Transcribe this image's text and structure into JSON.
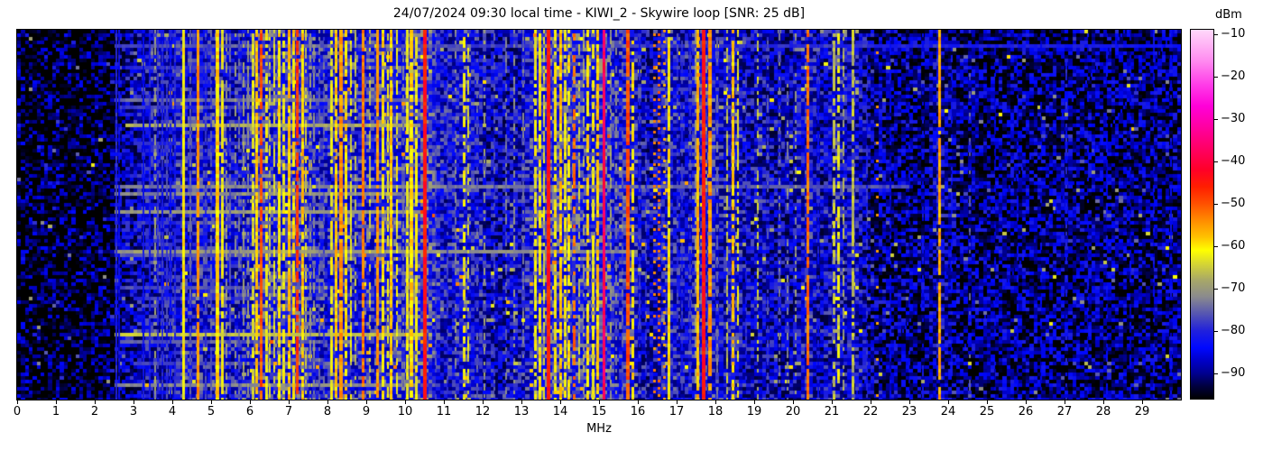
{
  "title": "24/07/2024 09:30 local time - KIWI_2 - Skywire loop [SNR: 25 dB]",
  "x_axis": {
    "label": "MHz",
    "ticks": [
      {
        "label": "0",
        "value": 0
      },
      {
        "label": "1",
        "value": 1
      },
      {
        "label": "2",
        "value": 2
      },
      {
        "label": "3",
        "value": 3
      },
      {
        "label": "4",
        "value": 4
      },
      {
        "label": "5",
        "value": 5
      },
      {
        "label": "6",
        "value": 6
      },
      {
        "label": "7",
        "value": 7
      },
      {
        "label": "8",
        "value": 8
      },
      {
        "label": "9",
        "value": 9
      },
      {
        "label": "10",
        "value": 10
      },
      {
        "label": "11",
        "value": 11
      },
      {
        "label": "12",
        "value": 12
      },
      {
        "label": "13",
        "value": 13
      },
      {
        "label": "14",
        "value": 14
      },
      {
        "label": "15",
        "value": 15
      },
      {
        "label": "16",
        "value": 16
      },
      {
        "label": "17",
        "value": 17
      },
      {
        "label": "18",
        "value": 18
      },
      {
        "label": "19",
        "value": 19
      },
      {
        "label": "20",
        "value": 20
      },
      {
        "label": "21",
        "value": 21
      },
      {
        "label": "22",
        "value": 22
      },
      {
        "label": "23",
        "value": 23
      },
      {
        "label": "24",
        "value": 24
      },
      {
        "label": "25",
        "value": 25
      },
      {
        "label": "26",
        "value": 26
      },
      {
        "label": "27",
        "value": 27
      },
      {
        "label": "28",
        "value": 28
      },
      {
        "label": "29",
        "value": 29
      }
    ]
  },
  "colorbar": {
    "label": "dBm",
    "ticks": [
      {
        "label": "−10",
        "value": -10
      },
      {
        "label": "−20",
        "value": -20
      },
      {
        "label": "−30",
        "value": -30
      },
      {
        "label": "−40",
        "value": -40
      },
      {
        "label": "−50",
        "value": -50
      },
      {
        "label": "−60",
        "value": -60
      },
      {
        "label": "−70",
        "value": -70
      },
      {
        "label": "−80",
        "value": -80
      },
      {
        "label": "−90",
        "value": -90
      }
    ]
  },
  "chart_data": {
    "type": "heatmap",
    "subtype": "radio-spectrogram-waterfall",
    "title": "24/07/2024 09:30 local time - KIWI_2 - Skywire loop [SNR: 25 dB]",
    "xlabel": "MHz",
    "x_range": [
      0,
      30
    ],
    "value_label": "dBm",
    "value_range": [
      -96,
      -9
    ],
    "legend_position": "right-colorbar",
    "grid": false,
    "colormap": [
      [
        -96,
        "#000000"
      ],
      [
        -93,
        "#000040"
      ],
      [
        -90,
        "#000090"
      ],
      [
        -87,
        "#0000c8"
      ],
      [
        -84,
        "#0008ff"
      ],
      [
        -80,
        "#2020dc"
      ],
      [
        -76,
        "#5555b2"
      ],
      [
        -72,
        "#8a8a8e"
      ],
      [
        -68,
        "#a8a868"
      ],
      [
        -64,
        "#d8d830"
      ],
      [
        -61,
        "#ffff00"
      ],
      [
        -58,
        "#ffc400"
      ],
      [
        -54,
        "#ff8c00"
      ],
      [
        -50,
        "#ff5000"
      ],
      [
        -46,
        "#ff1e00"
      ],
      [
        -42,
        "#ff0028"
      ],
      [
        -37,
        "#ff0064"
      ],
      [
        -32,
        "#ff00a0"
      ],
      [
        -27,
        "#ff00d8"
      ],
      [
        -22,
        "#ff3ce8"
      ],
      [
        -16,
        "#ff8ff0"
      ],
      [
        -9,
        "#ffd8fa"
      ]
    ],
    "noise_floor_fields": [
      "mhz",
      "dbm"
    ],
    "noise_floor": [
      [
        0,
        -96
      ],
      [
        2.4,
        -96
      ],
      [
        2.7,
        -90
      ],
      [
        3.1,
        -88
      ],
      [
        3.6,
        -86
      ],
      [
        4.3,
        -87
      ],
      [
        5.0,
        -87
      ],
      [
        6.0,
        -86
      ],
      [
        6.5,
        -85
      ],
      [
        7.3,
        -84
      ],
      [
        8.0,
        -86
      ],
      [
        8.8,
        -86
      ],
      [
        9.5,
        -85
      ],
      [
        10.2,
        -84
      ],
      [
        10.6,
        -84
      ],
      [
        11.0,
        -86
      ],
      [
        11.6,
        -86
      ],
      [
        12.5,
        -88
      ],
      [
        13.3,
        -86
      ],
      [
        13.8,
        -84
      ],
      [
        14.5,
        -85
      ],
      [
        15.5,
        -86
      ],
      [
        16.1,
        -88
      ],
      [
        16.9,
        -87
      ],
      [
        17.8,
        -87
      ],
      [
        18.4,
        -88
      ],
      [
        19.0,
        -89
      ],
      [
        19.6,
        -88
      ],
      [
        20.5,
        -89
      ],
      [
        21.5,
        -88
      ],
      [
        22.2,
        -91
      ],
      [
        23.0,
        -92
      ],
      [
        24.0,
        -92
      ],
      [
        26.0,
        -92
      ],
      [
        28.0,
        -92
      ],
      [
        30.0,
        -92
      ]
    ],
    "signals_fields": [
      "mhz",
      "dbm",
      "width_px",
      "duty"
    ],
    "signals": [
      [
        2.55,
        -80,
        2,
        1
      ],
      [
        2.63,
        -84,
        2,
        0.8
      ],
      [
        3.25,
        -83,
        2,
        0.85
      ],
      [
        3.42,
        -81,
        2,
        0.85
      ],
      [
        3.55,
        -70,
        2,
        0.55
      ],
      [
        3.63,
        -79,
        2,
        0.8
      ],
      [
        3.74,
        -80,
        2,
        0.8
      ],
      [
        3.85,
        -78,
        2,
        0.85
      ],
      [
        3.95,
        -82,
        2,
        0.8
      ],
      [
        4.07,
        -80,
        2,
        0.8
      ],
      [
        4.28,
        -61,
        3,
        1
      ],
      [
        4.47,
        -76,
        2,
        0.8
      ],
      [
        4.67,
        -55,
        3,
        0.95
      ],
      [
        4.85,
        -78,
        2,
        0.7
      ],
      [
        5.0,
        -76,
        2,
        0.7
      ],
      [
        5.17,
        -59,
        4,
        1
      ],
      [
        5.3,
        -62,
        3,
        0.9
      ],
      [
        5.4,
        -70,
        2,
        0.6
      ],
      [
        5.48,
        -76,
        2,
        0.7
      ],
      [
        5.62,
        -71,
        2,
        0.5
      ],
      [
        5.73,
        -75,
        2,
        0.6
      ],
      [
        5.83,
        -70,
        2,
        0.6
      ],
      [
        5.95,
        -71,
        2,
        0.6
      ],
      [
        6.07,
        -63,
        3,
        0.7
      ],
      [
        6.18,
        -58,
        3,
        0.9
      ],
      [
        6.3,
        -50,
        3,
        0.9
      ],
      [
        6.42,
        -62,
        3,
        0.7
      ],
      [
        6.52,
        -65,
        2,
        0.6
      ],
      [
        6.62,
        -64,
        2,
        0.7
      ],
      [
        6.75,
        -60,
        3,
        0.85
      ],
      [
        6.88,
        -62,
        3,
        0.7
      ],
      [
        7.0,
        -58,
        3,
        0.9
      ],
      [
        7.12,
        -60,
        3,
        0.8
      ],
      [
        7.22,
        -48,
        3,
        0.85
      ],
      [
        7.35,
        -58,
        3,
        0.85
      ],
      [
        7.45,
        -65,
        2,
        0.6
      ],
      [
        7.55,
        -70,
        2,
        0.6
      ],
      [
        7.65,
        -71,
        2,
        0.5
      ],
      [
        7.78,
        -74,
        2,
        0.6
      ],
      [
        7.9,
        -76,
        2,
        0.5
      ],
      [
        8.1,
        -62,
        3,
        0.75
      ],
      [
        8.22,
        -58,
        3,
        0.9
      ],
      [
        8.35,
        -55,
        4,
        0.95
      ],
      [
        8.48,
        -60,
        3,
        0.8
      ],
      [
        8.6,
        -63,
        2,
        0.7
      ],
      [
        8.72,
        -67,
        2,
        0.6
      ],
      [
        8.93,
        -53,
        3,
        0.9
      ],
      [
        9.1,
        -65,
        2,
        0.6
      ],
      [
        9.3,
        -55,
        3,
        0.9
      ],
      [
        9.42,
        -60,
        3,
        0.8
      ],
      [
        9.55,
        -62,
        2,
        0.65
      ],
      [
        9.63,
        -58,
        3,
        0.95
      ],
      [
        9.8,
        -62,
        2,
        0.7
      ],
      [
        9.95,
        -74,
        2,
        0.5
      ],
      [
        10.05,
        -62,
        3,
        0.8
      ],
      [
        10.16,
        -59,
        4,
        0.85
      ],
      [
        10.28,
        -62,
        3,
        0.8
      ],
      [
        10.52,
        -45,
        4,
        1
      ],
      [
        10.78,
        -77,
        2,
        0.6
      ],
      [
        11.1,
        -79,
        2,
        0.6
      ],
      [
        11.3,
        -72,
        2,
        0.5
      ],
      [
        11.52,
        -62,
        3,
        0.6
      ],
      [
        11.63,
        -64,
        2,
        0.6
      ],
      [
        11.85,
        -75,
        2,
        0.5
      ],
      [
        12.05,
        -70,
        2,
        0.4
      ],
      [
        12.3,
        -77,
        2,
        0.5
      ],
      [
        12.6,
        -74,
        2,
        0.5
      ],
      [
        12.82,
        -71,
        2,
        0.45
      ],
      [
        13.05,
        -74,
        2,
        0.5
      ],
      [
        13.35,
        -62,
        3,
        0.8
      ],
      [
        13.48,
        -60,
        3,
        0.85
      ],
      [
        13.58,
        -64,
        2,
        0.7
      ],
      [
        13.7,
        -45,
        4,
        1
      ],
      [
        13.87,
        -61,
        3,
        0.7
      ],
      [
        14.0,
        -58,
        3,
        0.85
      ],
      [
        14.12,
        -62,
        3,
        0.7
      ],
      [
        14.23,
        -60,
        3,
        0.7
      ],
      [
        14.35,
        -52,
        3,
        0.6
      ],
      [
        14.48,
        -66,
        2,
        0.6
      ],
      [
        14.6,
        -68,
        2,
        0.5
      ],
      [
        14.72,
        -60,
        3,
        0.8
      ],
      [
        14.85,
        -62,
        3,
        0.7
      ],
      [
        14.97,
        -58,
        3,
        0.8
      ],
      [
        15.12,
        -38,
        3,
        1
      ],
      [
        15.3,
        -70,
        2,
        0.5
      ],
      [
        15.45,
        -72,
        2,
        0.5
      ],
      [
        15.6,
        -76,
        2,
        0.5
      ],
      [
        15.75,
        -50,
        4,
        0.95
      ],
      [
        15.87,
        -60,
        3,
        0.7
      ],
      [
        16.05,
        -80,
        2,
        0.5
      ],
      [
        16.2,
        -78,
        2,
        0.5
      ],
      [
        16.8,
        -60,
        3,
        0.9
      ],
      [
        17.02,
        -78,
        2,
        0.6
      ],
      [
        17.15,
        -80,
        2,
        0.5
      ],
      [
        17.35,
        -79,
        2,
        0.5
      ],
      [
        17.48,
        -70,
        2,
        0.6
      ],
      [
        17.55,
        -57,
        3,
        0.95
      ],
      [
        17.7,
        -45,
        4,
        1
      ],
      [
        17.87,
        -55,
        4,
        0.9
      ],
      [
        18.05,
        -74,
        2,
        0.5
      ],
      [
        18.3,
        -66,
        2,
        0.55
      ],
      [
        18.45,
        -58,
        3,
        0.7
      ],
      [
        18.58,
        -62,
        2,
        0.6
      ],
      [
        18.8,
        -80,
        2,
        0.5
      ],
      [
        19.1,
        -66,
        2,
        0.5
      ],
      [
        19.35,
        -77,
        2,
        0.5
      ],
      [
        19.65,
        -74,
        2,
        0.45
      ],
      [
        19.85,
        -72,
        2,
        0.4
      ],
      [
        20.08,
        -70,
        2,
        0.4
      ],
      [
        20.38,
        -52,
        3,
        0.9
      ],
      [
        20.65,
        -82,
        2,
        0.5
      ],
      [
        21.05,
        -66,
        3,
        0.6
      ],
      [
        21.17,
        -63,
        3,
        0.6
      ],
      [
        21.3,
        -68,
        2,
        0.5
      ],
      [
        21.55,
        -66,
        3,
        0.7
      ],
      [
        21.9,
        -80,
        2,
        0.5
      ],
      [
        22.5,
        -85,
        2,
        0.5
      ],
      [
        23.0,
        -85,
        2,
        0.4
      ],
      [
        23.35,
        -83,
        2,
        0.4
      ],
      [
        23.78,
        -56,
        3,
        0.95
      ],
      [
        24.1,
        -83,
        2,
        0.4
      ],
      [
        24.55,
        -76,
        2,
        0.35
      ],
      [
        25.2,
        -86,
        2,
        0.4
      ],
      [
        25.8,
        -85,
        2,
        0.4
      ],
      [
        26.4,
        -85,
        2,
        0.4
      ],
      [
        27.05,
        -81,
        2,
        0.5
      ],
      [
        27.6,
        -85,
        2,
        0.4
      ],
      [
        28.1,
        -84,
        2,
        0.4
      ],
      [
        28.7,
        -85,
        2,
        0.4
      ],
      [
        29.3,
        -84,
        2,
        0.4
      ],
      [
        29.75,
        -84,
        2,
        0.4
      ]
    ],
    "dotted_signals_fields": [
      "mhz",
      "dbm",
      "width_px",
      "row_period"
    ],
    "dotted_signals": [
      [
        16.42,
        -54,
        3,
        3
      ],
      [
        16.55,
        -52,
        3,
        2
      ],
      [
        16.68,
        -56,
        3,
        3
      ],
      [
        22.18,
        -56,
        3,
        5
      ]
    ],
    "bursts_fields": [
      "time_fraction",
      "from_mhz",
      "to_mhz",
      "dbm",
      "fade_per_mhz_above_10"
    ],
    "bursts": [
      [
        0.037,
        2.5,
        30,
        -77,
        0.25
      ],
      [
        0.1,
        2.8,
        9.5,
        -79,
        0
      ],
      [
        0.185,
        2.5,
        10.5,
        -74,
        0
      ],
      [
        0.205,
        2.6,
        8.0,
        -79,
        0
      ],
      [
        0.25,
        2.8,
        10.3,
        -68,
        0
      ],
      [
        0.3,
        3.0,
        7.0,
        -80,
        0
      ],
      [
        0.42,
        2.5,
        23.0,
        -73,
        0.3
      ],
      [
        0.44,
        2.5,
        10.5,
        -72,
        0
      ],
      [
        0.49,
        2.5,
        10.5,
        -70,
        0
      ],
      [
        0.52,
        3.0,
        6.5,
        -80,
        0
      ],
      [
        0.595,
        2.5,
        16.0,
        -70,
        0.4
      ],
      [
        0.61,
        2.6,
        9.0,
        -76,
        0
      ],
      [
        0.7,
        2.6,
        8.0,
        -77,
        0
      ],
      [
        0.73,
        3.0,
        7.5,
        -79,
        0
      ],
      [
        0.825,
        2.5,
        10.5,
        -66,
        0
      ],
      [
        0.84,
        2.6,
        8.0,
        -76,
        0
      ],
      [
        0.9,
        3.0,
        8.0,
        -78,
        0
      ],
      [
        0.965,
        2.5,
        10.0,
        -72,
        0
      ]
    ],
    "sweeps_fields": [
      "from_mhz",
      "to_mhz",
      "dbm"
    ],
    "sweeps": [
      [
        21.5,
        28.5,
        -85
      ],
      [
        23.5,
        29.8,
        -86
      ]
    ]
  }
}
